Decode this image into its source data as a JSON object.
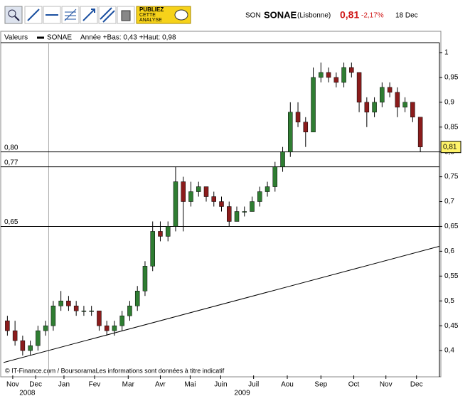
{
  "toolbar": {
    "button": [
      "PUBLIEZ",
      "CETTE",
      "ANALYSE"
    ]
  },
  "header": {
    "code": "SON",
    "name": "SONAE",
    "market": "(Lisbonne)",
    "price": "0,81",
    "change": "-2,17%",
    "date": "18 Dec"
  },
  "chart_data": {
    "type": "candlestick",
    "legend_prefix": "Valeurs",
    "legend_suffix": "Année +Bas: 0,43 +Haut: 0,98",
    "source": "© IT-Finance.com / BoursoramaLes informations sont données à titre indicatif",
    "up_color": "#2f7d32",
    "down_color": "#8b1c1c",
    "series": [
      {
        "name": "SONAE",
        "color": "#000000",
        "open": [
          0.46,
          0.44,
          0.42,
          0.4,
          0.41,
          0.44,
          0.45,
          0.49,
          0.5,
          0.49,
          0.48,
          0.48,
          0.48,
          0.45,
          0.44,
          0.45,
          0.47,
          0.49,
          0.52,
          0.57,
          0.64,
          0.63,
          0.65,
          0.74,
          0.7,
          0.72,
          0.73,
          0.71,
          0.7,
          0.69,
          0.66,
          0.68,
          0.68,
          0.7,
          0.72,
          0.73,
          0.77,
          0.8,
          0.88,
          0.86,
          0.84,
          0.95,
          0.96,
          0.95,
          0.94,
          0.97,
          0.96,
          0.9,
          0.88,
          0.9,
          0.93,
          0.92,
          0.89,
          0.9,
          0.87
        ],
        "high": [
          0.47,
          0.46,
          0.43,
          0.42,
          0.45,
          0.46,
          0.5,
          0.52,
          0.51,
          0.5,
          0.49,
          0.49,
          0.48,
          0.46,
          0.46,
          0.48,
          0.5,
          0.53,
          0.58,
          0.66,
          0.66,
          0.66,
          0.77,
          0.75,
          0.74,
          0.74,
          0.73,
          0.72,
          0.71,
          0.7,
          0.69,
          0.69,
          0.71,
          0.73,
          0.74,
          0.78,
          0.81,
          0.9,
          0.9,
          0.87,
          0.97,
          0.98,
          0.97,
          0.96,
          0.98,
          0.98,
          0.96,
          0.91,
          0.91,
          0.94,
          0.94,
          0.93,
          0.91,
          0.9,
          0.87
        ],
        "low": [
          0.43,
          0.41,
          0.39,
          0.39,
          0.4,
          0.43,
          0.44,
          0.48,
          0.48,
          0.47,
          0.47,
          0.47,
          0.44,
          0.43,
          0.43,
          0.44,
          0.46,
          0.48,
          0.51,
          0.56,
          0.62,
          0.62,
          0.64,
          0.64,
          0.69,
          0.71,
          0.7,
          0.69,
          0.68,
          0.65,
          0.66,
          0.67,
          0.68,
          0.69,
          0.71,
          0.72,
          0.76,
          0.79,
          0.85,
          0.81,
          0.84,
          0.94,
          0.94,
          0.93,
          0.93,
          0.95,
          0.88,
          0.85,
          0.87,
          0.89,
          0.91,
          0.87,
          0.88,
          0.86,
          0.8
        ],
        "close": [
          0.44,
          0.42,
          0.4,
          0.41,
          0.44,
          0.45,
          0.49,
          0.5,
          0.49,
          0.48,
          0.48,
          0.48,
          0.45,
          0.44,
          0.45,
          0.47,
          0.49,
          0.52,
          0.57,
          0.64,
          0.63,
          0.65,
          0.74,
          0.7,
          0.72,
          0.73,
          0.71,
          0.7,
          0.69,
          0.66,
          0.68,
          0.68,
          0.7,
          0.72,
          0.73,
          0.77,
          0.8,
          0.88,
          0.86,
          0.84,
          0.95,
          0.96,
          0.95,
          0.94,
          0.97,
          0.96,
          0.9,
          0.88,
          0.9,
          0.93,
          0.92,
          0.89,
          0.9,
          0.87,
          0.81
        ]
      }
    ],
    "xlim": [
      0,
      57
    ],
    "xticks": [
      {
        "value": 1.2,
        "label": "Nov"
      },
      {
        "value": 4.2,
        "label": "Dec"
      },
      {
        "value": 7.9,
        "label": "Jan"
      },
      {
        "value": 11.9,
        "label": "Fev"
      },
      {
        "value": 16.3,
        "label": "Mar"
      },
      {
        "value": 20.5,
        "label": "Avr"
      },
      {
        "value": 24.4,
        "label": "Mai"
      },
      {
        "value": 28.4,
        "label": "Juin"
      },
      {
        "value": 32.7,
        "label": "Juil"
      },
      {
        "value": 37.1,
        "label": "Aou"
      },
      {
        "value": 41.5,
        "label": "Sep"
      },
      {
        "value": 45.8,
        "label": "Oct"
      },
      {
        "value": 50,
        "label": "Nov"
      },
      {
        "value": 54,
        "label": "Dec"
      }
    ],
    "years": [
      {
        "value": 3.1,
        "label": "2008"
      },
      {
        "value": 31.2,
        "label": "2009"
      }
    ],
    "vlines": [
      5.9
    ],
    "ylim": [
      0.35,
      1.02
    ],
    "yticks": [
      {
        "value": 0.4,
        "label": "0,4"
      },
      {
        "value": 0.45,
        "label": "0,45"
      },
      {
        "value": 0.5,
        "label": "0,5"
      },
      {
        "value": 0.55,
        "label": "0,55"
      },
      {
        "value": 0.6,
        "label": "0,6"
      },
      {
        "value": 0.65,
        "label": "0,65"
      },
      {
        "value": 0.7,
        "label": "0,7"
      },
      {
        "value": 0.75,
        "label": "0,75"
      },
      {
        "value": 0.8,
        "label": "0,8"
      },
      {
        "value": 0.85,
        "label": "0,85"
      },
      {
        "value": 0.9,
        "label": "0,9"
      },
      {
        "value": 0.95,
        "label": "0,95"
      },
      {
        "value": 1,
        "label": "1"
      }
    ],
    "hlines": [
      {
        "value": 0.8,
        "label": "0,80"
      },
      {
        "value": 0.77,
        "label": "0,77"
      },
      {
        "value": 0.65,
        "label": "0,65"
      }
    ],
    "trendline": {
      "x": [
        0,
        57
      ],
      "values": [
        0.376,
        0.61
      ]
    },
    "last": {
      "value": 0.81,
      "label": "0,81"
    }
  }
}
